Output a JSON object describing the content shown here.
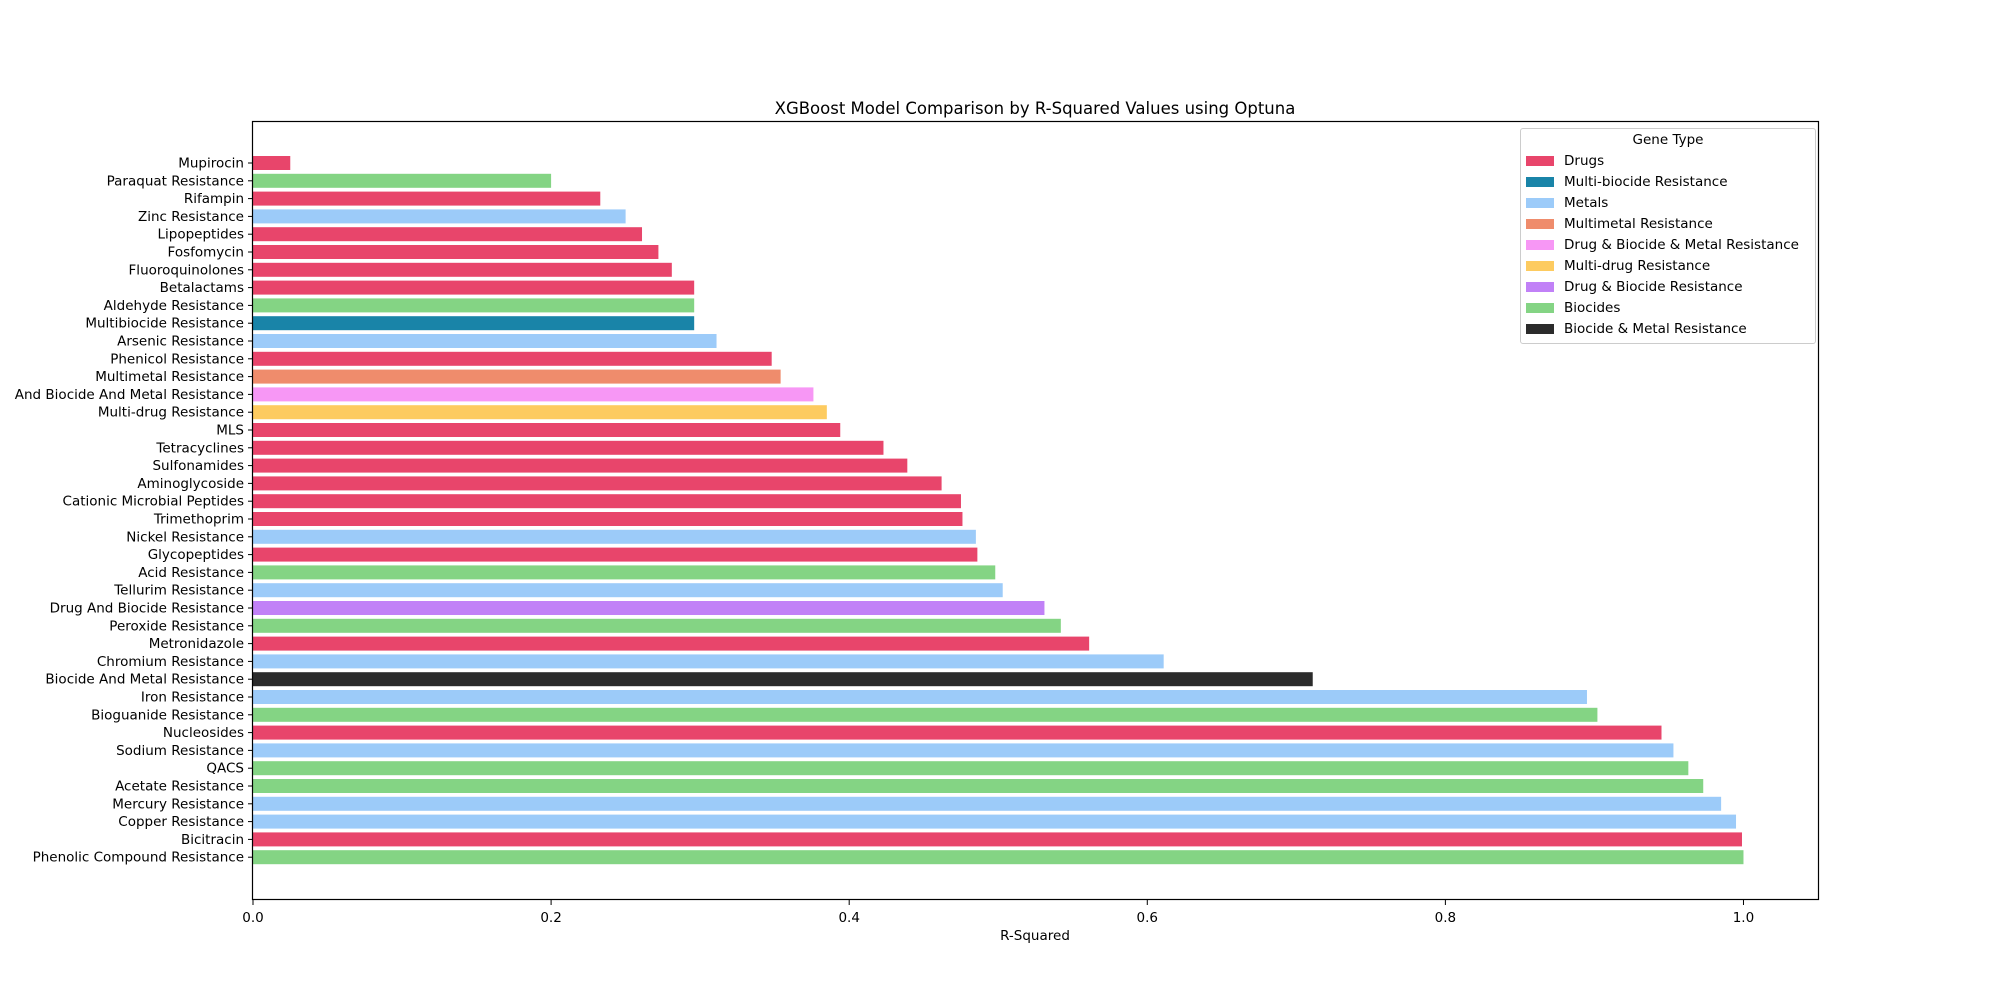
{
  "chart_data": {
    "type": "bar",
    "orientation": "horizontal",
    "title": "XGBoost Model Comparison by R-Squared Values using Optuna",
    "xlabel": "R-Squared",
    "ylabel": "",
    "xlim": [
      0,
      1.05
    ],
    "xticks": [
      {
        "value": 0.0,
        "label": "0.0"
      },
      {
        "value": 0.2,
        "label": "0.2"
      },
      {
        "value": 0.4,
        "label": "0.4"
      },
      {
        "value": 0.6,
        "label": "0.6"
      },
      {
        "value": 0.8,
        "label": "0.8"
      },
      {
        "value": 1.0,
        "label": "1.0"
      }
    ],
    "grid": false,
    "legend": {
      "title": "Gene Type",
      "placement": "top-right",
      "entries": [
        {
          "name": "Drugs",
          "color": "#e8456b"
        },
        {
          "name": "Multi-biocide Resistance",
          "color": "#1984a8"
        },
        {
          "name": "Metals",
          "color": "#9ccbf9"
        },
        {
          "name": "Multimetal Resistance",
          "color": "#ef8c6c"
        },
        {
          "name": "Drug & Biocide & Metal Resistance",
          "color": "#f797f5"
        },
        {
          "name": "Multi-drug Resistance",
          "color": "#fdcb60"
        },
        {
          "name": "Drug & Biocide Resistance",
          "color": "#c181f7"
        },
        {
          "name": "Biocides",
          "color": "#84d484"
        },
        {
          "name": "Biocide & Metal Resistance",
          "color": "#2b2b2b"
        }
      ]
    },
    "bars": [
      {
        "label": "Mupirocin",
        "value": 0.025,
        "group": "Drugs"
      },
      {
        "label": "Paraquat Resistance",
        "value": 0.2,
        "group": "Biocides"
      },
      {
        "label": "Rifampin",
        "value": 0.233,
        "group": "Drugs"
      },
      {
        "label": "Zinc Resistance",
        "value": 0.25,
        "group": "Metals"
      },
      {
        "label": "Lipopeptides",
        "value": 0.261,
        "group": "Drugs"
      },
      {
        "label": "Fosfomycin",
        "value": 0.272,
        "group": "Drugs"
      },
      {
        "label": "Fluoroquinolones",
        "value": 0.281,
        "group": "Drugs"
      },
      {
        "label": "Betalactams",
        "value": 0.296,
        "group": "Drugs"
      },
      {
        "label": "Aldehyde Resistance",
        "value": 0.296,
        "group": "Biocides"
      },
      {
        "label": "Multibiocide Resistance",
        "value": 0.296,
        "group": "Multi-biocide Resistance"
      },
      {
        "label": "Arsenic Resistance",
        "value": 0.311,
        "group": "Metals"
      },
      {
        "label": "Phenicol Resistance",
        "value": 0.348,
        "group": "Drugs"
      },
      {
        "label": "Multimetal Resistance",
        "value": 0.354,
        "group": "Multimetal Resistance"
      },
      {
        "label": "And Biocide And Metal Resistance",
        "value": 0.376,
        "group": "Drug & Biocide & Metal Resistance"
      },
      {
        "label": "Multi-drug Resistance",
        "value": 0.385,
        "group": "Multi-drug Resistance"
      },
      {
        "label": "MLS",
        "value": 0.394,
        "group": "Drugs"
      },
      {
        "label": "Tetracyclines",
        "value": 0.423,
        "group": "Drugs"
      },
      {
        "label": "Sulfonamides",
        "value": 0.439,
        "group": "Drugs"
      },
      {
        "label": "Aminoglycoside",
        "value": 0.462,
        "group": "Drugs"
      },
      {
        "label": "Cationic Microbial Peptides",
        "value": 0.475,
        "group": "Drugs"
      },
      {
        "label": "Trimethoprim",
        "value": 0.476,
        "group": "Drugs"
      },
      {
        "label": "Nickel Resistance",
        "value": 0.485,
        "group": "Metals"
      },
      {
        "label": "Glycopeptides",
        "value": 0.486,
        "group": "Drugs"
      },
      {
        "label": "Acid Resistance",
        "value": 0.498,
        "group": "Biocides"
      },
      {
        "label": "Tellurim Resistance",
        "value": 0.503,
        "group": "Metals"
      },
      {
        "label": "Drug And Biocide Resistance",
        "value": 0.531,
        "group": "Drug & Biocide Resistance"
      },
      {
        "label": "Peroxide Resistance",
        "value": 0.542,
        "group": "Biocides"
      },
      {
        "label": "Metronidazole",
        "value": 0.561,
        "group": "Drugs"
      },
      {
        "label": "Chromium Resistance",
        "value": 0.611,
        "group": "Metals"
      },
      {
        "label": "Biocide And Metal Resistance",
        "value": 0.711,
        "group": "Biocide & Metal Resistance"
      },
      {
        "label": "Iron Resistance",
        "value": 0.895,
        "group": "Metals"
      },
      {
        "label": "Bioguanide Resistance",
        "value": 0.902,
        "group": "Biocides"
      },
      {
        "label": "Nucleosides",
        "value": 0.945,
        "group": "Drugs"
      },
      {
        "label": "Sodium Resistance",
        "value": 0.953,
        "group": "Metals"
      },
      {
        "label": "QACS",
        "value": 0.963,
        "group": "Biocides"
      },
      {
        "label": "Acetate Resistance",
        "value": 0.973,
        "group": "Biocides"
      },
      {
        "label": "Mercury Resistance",
        "value": 0.985,
        "group": "Metals"
      },
      {
        "label": "Copper Resistance",
        "value": 0.995,
        "group": "Metals"
      },
      {
        "label": "Bicitracin",
        "value": 0.999,
        "group": "Drugs"
      },
      {
        "label": "Phenolic Compound Resistance",
        "value": 1.0,
        "group": "Biocides"
      }
    ]
  }
}
